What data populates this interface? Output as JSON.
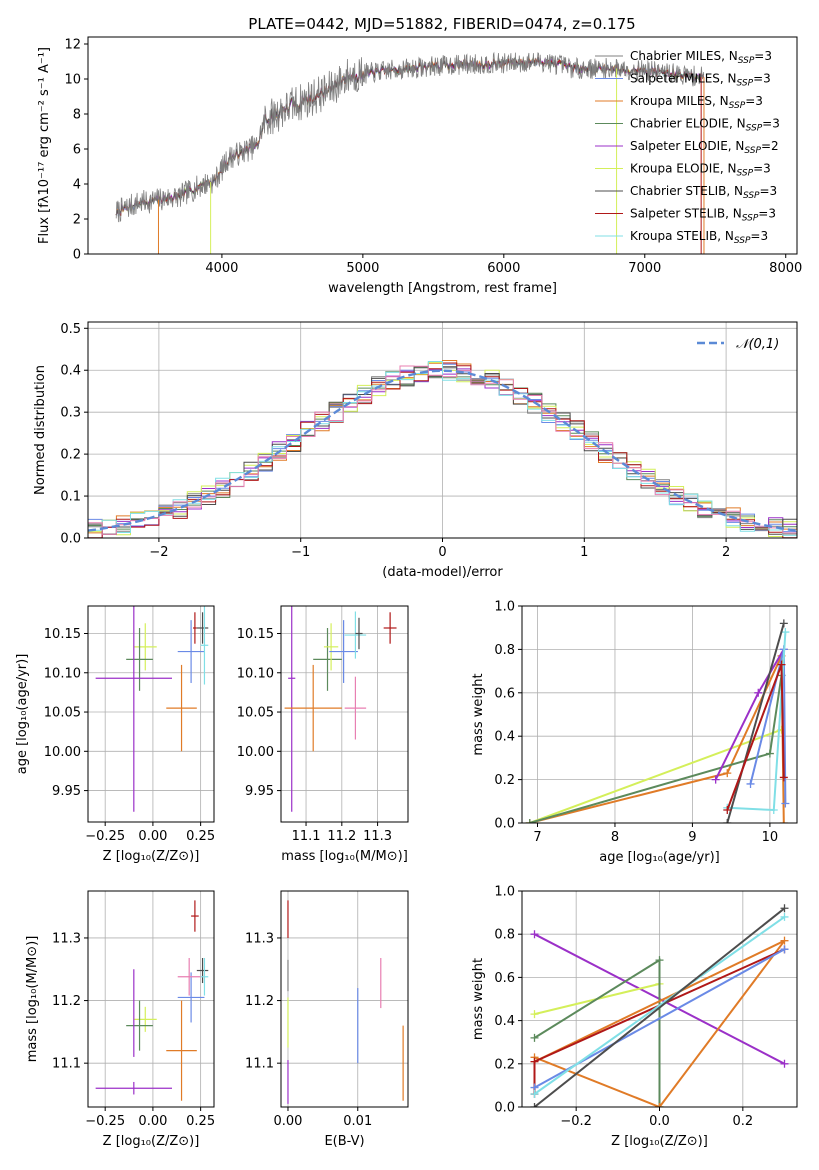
{
  "title": "PLATE=0442, MJD=51882, FIBERID=0474, z=0.175",
  "colors": {
    "Chabrier MILES": "#808080",
    "Salpeter MILES": "#6a8ae6",
    "Kroupa MILES": "#e07b27",
    "Chabrier ELODIE": "#5c8a5c",
    "Salpeter ELODIE": "#9b30c8",
    "Kroupa ELODIE": "#d4ef5a",
    "Chabrier STELIB": "#4d4d4d",
    "Salpeter STELIB": "#b01818",
    "Kroupa STELIB": "#80dfe6",
    "Extra pink": "#e87fb2",
    "Gaussian": "#5b8ad6"
  },
  "chart_data": [
    {
      "id": "spectrum",
      "type": "line",
      "xlabel": "wavelength [Angstrom, rest frame]",
      "ylabel": "Flux [fλ10⁻¹⁷ erg cm⁻² s⁻¹ A⁻¹]",
      "xlim": [
        3050,
        8080
      ],
      "ylim": [
        0,
        12.4
      ],
      "xticks": [
        4000,
        5000,
        6000,
        7000,
        8000
      ],
      "yticks": [
        0,
        2,
        4,
        6,
        8,
        10,
        12
      ],
      "grid": false,
      "legend_position": "top-right",
      "x_range_data": [
        3250,
        7420
      ],
      "continuum_knots": [
        [
          3250,
          2.4
        ],
        [
          3400,
          2.9
        ],
        [
          3550,
          3.1
        ],
        [
          3700,
          3.3
        ],
        [
          3850,
          3.9
        ],
        [
          3950,
          4.2
        ],
        [
          4050,
          5.5
        ],
        [
          4250,
          6.2
        ],
        [
          4300,
          7.6
        ],
        [
          4500,
          8.5
        ],
        [
          4750,
          9.3
        ],
        [
          4900,
          10.2
        ],
        [
          5200,
          10.5
        ],
        [
          5600,
          10.8
        ],
        [
          6000,
          10.9
        ],
        [
          6300,
          11.0
        ],
        [
          6500,
          10.6
        ],
        [
          6800,
          10.6
        ],
        [
          7000,
          10.5
        ],
        [
          7200,
          10.3
        ],
        [
          7420,
          10.1
        ]
      ],
      "series": [
        {
          "name": "Chabrier MILES, N",
          "sub": "SSP",
          "suffix": "=3",
          "color_key": "Chabrier MILES"
        },
        {
          "name": "Salpeter MILES, N",
          "sub": "SSP",
          "suffix": "=3",
          "color_key": "Salpeter MILES"
        },
        {
          "name": "Kroupa MILES, N",
          "sub": "SSP",
          "suffix": "=3",
          "color_key": "Kroupa MILES"
        },
        {
          "name": "Chabrier ELODIE, N",
          "sub": "SSP",
          "suffix": "=3",
          "color_key": "Chabrier ELODIE"
        },
        {
          "name": "Salpeter ELODIE, N",
          "sub": "SSP",
          "suffix": "=2",
          "color_key": "Salpeter ELODIE"
        },
        {
          "name": "Kroupa ELODIE, N",
          "sub": "SSP",
          "suffix": "=3",
          "color_key": "Kroupa ELODIE"
        },
        {
          "name": "Chabrier STELIB, N",
          "sub": "SSP",
          "suffix": "=3",
          "color_key": "Chabrier STELIB"
        },
        {
          "name": "Salpeter STELIB, N",
          "sub": "SSP",
          "suffix": "=3",
          "color_key": "Salpeter STELIB"
        },
        {
          "name": "Kroupa STELIB, N",
          "sub": "SSP",
          "suffix": "=3",
          "color_key": "Kroupa STELIB"
        }
      ],
      "vertical_drops": [
        {
          "x": 3550,
          "color_key": "Kroupa MILES"
        },
        {
          "x": 3920,
          "color_key": "Kroupa ELODIE"
        },
        {
          "x": 6800,
          "color_key": "Kroupa ELODIE"
        },
        {
          "x": 7400,
          "color_key": "Salpeter STELIB"
        },
        {
          "x": 7420,
          "color_key": "Kroupa MILES"
        }
      ]
    },
    {
      "id": "residuals",
      "type": "line",
      "xlabel": "(data-model)/error",
      "ylabel": "Normed distribution",
      "xlim": [
        -2.5,
        2.5
      ],
      "ylim": [
        0,
        0.515
      ],
      "xticks": [
        -2,
        -1,
        0,
        1,
        2
      ],
      "yticks": [
        0.0,
        0.1,
        0.2,
        0.3,
        0.4,
        0.5
      ],
      "grid": true,
      "legend_position": "top-right",
      "gaussian_label": "𝒩(0,1)",
      "bin_width": 0.1,
      "histogram_color_keys": [
        "Chabrier MILES",
        "Salpeter MILES",
        "Kroupa MILES",
        "Chabrier ELODIE",
        "Salpeter ELODIE",
        "Kroupa ELODIE",
        "Chabrier STELIB",
        "Salpeter STELIB",
        "Kroupa STELIB",
        "Extra pink"
      ]
    },
    {
      "id": "age_vs_Z",
      "type": "scatter",
      "xlabel": "Z [log₁₀(Z/Z⊙)]",
      "ylabel": "age  [log₁₀(age/yr)]",
      "xlim": [
        -0.34,
        0.32
      ],
      "ylim": [
        9.91,
        10.185
      ],
      "xticks": [
        -0.25,
        0.0,
        0.25
      ],
      "xticklabels": [
        "−0.25",
        "0.00",
        "0.25"
      ],
      "yticks": [
        9.95,
        10.0,
        10.05,
        10.1,
        10.15
      ],
      "yticklabels": [
        "9.95",
        "10.00",
        "10.05",
        "10.10",
        "10.15"
      ],
      "grid": true,
      "points": [
        {
          "color_key": "Kroupa ELODIE",
          "x": -0.04,
          "xerr": 0.06,
          "y": 10.133,
          "yerr": 0.03
        },
        {
          "color_key": "Chabrier ELODIE",
          "x": -0.07,
          "xerr": 0.07,
          "y": 10.117,
          "yerr": 0.04
        },
        {
          "color_key": "Salpeter ELODIE",
          "x": -0.1,
          "xerr": 0.2,
          "y": 10.093,
          "yerr": 0.17
        },
        {
          "color_key": "Salpeter MILES",
          "x": 0.2,
          "xerr": 0.07,
          "y": 10.127,
          "yerr": 0.04
        },
        {
          "color_key": "Salpeter STELIB",
          "x": 0.22,
          "xerr": 0.01,
          "y": 10.157,
          "yerr": 0.02
        },
        {
          "color_key": "Chabrier STELIB",
          "x": 0.26,
          "xerr": 0.03,
          "y": 10.157,
          "yerr": 0.02
        },
        {
          "color_key": "Kroupa STELIB",
          "x": 0.27,
          "xerr": 0.02,
          "y": 10.135,
          "yerr": 0.05
        },
        {
          "color_key": "Kroupa MILES",
          "x": 0.15,
          "xerr": 0.08,
          "y": 10.055,
          "yerr": 0.055
        }
      ]
    },
    {
      "id": "age_vs_mass",
      "type": "scatter",
      "xlabel": "mass [log₁₀(M/M⊙)]",
      "ylabel": "",
      "xlim": [
        11.03,
        11.385
      ],
      "ylim": [
        9.91,
        10.185
      ],
      "xticks": [
        11.1,
        11.2,
        11.3
      ],
      "xticklabels": [
        "11.1",
        "11.2",
        "11.3"
      ],
      "yticks": [
        9.95,
        10.0,
        10.05,
        10.1,
        10.15
      ],
      "yticklabels": [
        "9.95",
        "10.00",
        "10.05",
        "10.10",
        "10.15"
      ],
      "grid": true,
      "points": [
        {
          "color_key": "Salpeter ELODIE",
          "x": 11.06,
          "xerr": 0.01,
          "y": 10.093,
          "yerr": 0.17
        },
        {
          "color_key": "Kroupa MILES",
          "x": 11.12,
          "xerr": 0.08,
          "y": 10.055,
          "yerr": 0.055
        },
        {
          "color_key": "Chabrier ELODIE",
          "x": 11.16,
          "xerr": 0.04,
          "y": 10.117,
          "yerr": 0.04
        },
        {
          "color_key": "Kroupa ELODIE",
          "x": 11.17,
          "xerr": 0.02,
          "y": 10.133,
          "yerr": 0.03
        },
        {
          "color_key": "Salpeter MILES",
          "x": 11.205,
          "xerr": 0.04,
          "y": 10.127,
          "yerr": 0.04
        },
        {
          "color_key": "Extra pink",
          "x": 11.238,
          "xerr": 0.03,
          "y": 10.055,
          "yerr": 0.04
        },
        {
          "color_key": "Kroupa STELIB",
          "x": 11.238,
          "xerr": 0.03,
          "y": 10.148,
          "yerr": 0.03
        },
        {
          "color_key": "Chabrier STELIB",
          "x": 11.248,
          "xerr": 0.01,
          "y": 10.15,
          "yerr": 0.02
        },
        {
          "color_key": "Salpeter STELIB",
          "x": 11.335,
          "xerr": 0.018,
          "y": 10.157,
          "yerr": 0.02
        }
      ]
    },
    {
      "id": "weight_vs_age",
      "type": "line",
      "xlabel": "age  [log₁₀(age/yr)]",
      "ylabel": "mass weight",
      "xlim": [
        6.8,
        10.35
      ],
      "ylim": [
        0,
        1.0
      ],
      "xticks": [
        7,
        8,
        9,
        10
      ],
      "yticks": [
        0.0,
        0.2,
        0.4,
        0.6,
        0.8,
        1.0
      ],
      "grid": true,
      "series": [
        {
          "color_key": "Kroupa ELODIE",
          "x": [
            6.9,
            10.15
          ],
          "y": [
            0.0,
            0.43
          ]
        },
        {
          "color_key": "Kroupa MILES",
          "x": [
            6.9,
            9.45,
            10.15,
            10.18
          ],
          "y": [
            0.0,
            0.23,
            0.77,
            0.0
          ]
        },
        {
          "color_key": "Chabrier ELODIE",
          "x": [
            6.9,
            10.0,
            10.15
          ],
          "y": [
            0.0,
            0.32,
            0.68
          ]
        },
        {
          "color_key": "Salpeter ELODIE",
          "x": [
            9.3,
            9.85,
            10.18
          ],
          "y": [
            0.2,
            0.6,
            0.8
          ]
        },
        {
          "color_key": "Salpeter MILES",
          "x": [
            9.75,
            10.18,
            10.2
          ],
          "y": [
            0.18,
            0.8,
            0.09
          ]
        },
        {
          "color_key": "Kroupa STELIB",
          "x": [
            9.45,
            10.05,
            10.2
          ],
          "y": [
            0.07,
            0.06,
            0.88
          ]
        },
        {
          "color_key": "Chabrier STELIB",
          "x": [
            9.45,
            10.18
          ],
          "y": [
            0.0,
            0.92
          ]
        },
        {
          "color_key": "Salpeter STELIB",
          "x": [
            9.45,
            10.15,
            10.18
          ],
          "y": [
            0.06,
            0.73,
            0.21
          ]
        }
      ]
    },
    {
      "id": "mass_vs_Z",
      "type": "scatter",
      "xlabel": "Z [log₁₀(Z/Z⊙)]",
      "ylabel": "mass [log₁₀(M/M⊙)]",
      "xlim": [
        -0.34,
        0.32
      ],
      "ylim": [
        11.03,
        11.375
      ],
      "xticks": [
        -0.25,
        0.0,
        0.25
      ],
      "xticklabels": [
        "−0.25",
        "0.00",
        "0.25"
      ],
      "yticks": [
        11.1,
        11.2,
        11.3
      ],
      "yticklabels": [
        "11.1",
        "11.2",
        "11.3"
      ],
      "grid": true,
      "points": [
        {
          "color_key": "Salpeter ELODIE",
          "x": -0.1,
          "xerr": 0.2,
          "y": 11.06,
          "yerr": 0.01
        },
        {
          "color_key": "Kroupa ELODIE",
          "x": -0.04,
          "xerr": 0.06,
          "y": 11.17,
          "yerr": 0.02
        },
        {
          "color_key": "Chabrier ELODIE",
          "x": -0.07,
          "xerr": 0.07,
          "y": 11.16,
          "yerr": 0.04
        },
        {
          "color_key": "Salpeter ELODIE",
          "x": -0.1,
          "xerr": 0.0,
          "y": 11.18,
          "yerr": 0.07
        },
        {
          "color_key": "Salpeter MILES",
          "x": 0.2,
          "xerr": 0.07,
          "y": 11.205,
          "yerr": 0.04
        },
        {
          "color_key": "Kroupa MILES",
          "x": 0.15,
          "xerr": 0.08,
          "y": 11.12,
          "yerr": 0.08
        },
        {
          "color_key": "Extra pink",
          "x": 0.19,
          "xerr": 0.06,
          "y": 11.238,
          "yerr": 0.03
        },
        {
          "color_key": "Chabrier STELIB",
          "x": 0.26,
          "xerr": 0.03,
          "y": 11.248,
          "yerr": 0.02
        },
        {
          "color_key": "Salpeter STELIB",
          "x": 0.22,
          "xerr": 0.02,
          "y": 11.335,
          "yerr": 0.025
        },
        {
          "color_key": "Kroupa STELIB",
          "x": 0.27,
          "xerr": 0.02,
          "y": 11.238,
          "yerr": 0.03
        }
      ]
    },
    {
      "id": "mass_vs_ebv",
      "type": "scatter",
      "xlabel": "E(B-V)",
      "ylabel": "",
      "xlim": [
        -0.001,
        0.0172
      ],
      "ylim": [
        11.03,
        11.375
      ],
      "xticks": [
        0.0,
        0.01
      ],
      "xticklabels": [
        "0.00",
        "0.01"
      ],
      "yticks": [
        11.1,
        11.2,
        11.3
      ],
      "yticklabels": [
        "11.1",
        "11.2",
        "11.3"
      ],
      "grid": true,
      "points": [
        {
          "color_key": "Salpeter STELIB",
          "x": 0.0,
          "xerr": 0.0,
          "y": 11.33,
          "yerr": 0.03
        },
        {
          "color_key": "Chabrier MILES",
          "x": 0.0,
          "xerr": 0.0,
          "y": 11.24,
          "yerr": 0.025
        },
        {
          "color_key": "Kroupa ELODIE",
          "x": 0.0,
          "xerr": 0.0,
          "y": 11.165,
          "yerr": 0.04
        },
        {
          "color_key": "Salpeter ELODIE",
          "x": 0.0,
          "xerr": 0.0,
          "y": 11.07,
          "yerr": 0.035
        },
        {
          "color_key": "Salpeter MILES",
          "x": 0.01,
          "xerr": 0.0,
          "y": 11.16,
          "yerr": 0.06
        },
        {
          "color_key": "Extra pink",
          "x": 0.0133,
          "xerr": 0.0,
          "y": 11.228,
          "yerr": 0.04
        },
        {
          "color_key": "Kroupa MILES",
          "x": 0.0165,
          "xerr": 0.0,
          "y": 11.1,
          "yerr": 0.06
        }
      ]
    },
    {
      "id": "weight_vs_Z",
      "type": "line",
      "xlabel": "Z [log₁₀(Z/Z⊙)]",
      "ylabel": "mass weight",
      "xlim": [
        -0.33,
        0.33
      ],
      "ylim": [
        0,
        1.0
      ],
      "xticks": [
        -0.2,
        0.0,
        0.2
      ],
      "xticklabels": [
        "−0.2",
        "0.0",
        "0.2"
      ],
      "yticks": [
        0.0,
        0.2,
        0.4,
        0.6,
        0.8,
        1.0
      ],
      "grid": true,
      "series": [
        {
          "color_key": "Salpeter ELODIE",
          "x": [
            -0.3,
            0.3
          ],
          "y": [
            0.8,
            0.2
          ]
        },
        {
          "color_key": "Kroupa ELODIE",
          "x": [
            -0.3,
            0.0,
            0.0
          ],
          "y": [
            0.43,
            0.57,
            0.0
          ]
        },
        {
          "color_key": "Chabrier ELODIE",
          "x": [
            -0.3,
            0.0,
            0.0
          ],
          "y": [
            0.32,
            0.68,
            0.0
          ]
        },
        {
          "color_key": "Kroupa MILES",
          "x": [
            -0.3,
            0.0,
            0.3,
            -0.3
          ],
          "y": [
            0.23,
            0.0,
            0.77,
            0.21
          ]
        },
        {
          "color_key": "Salpeter STELIB",
          "x": [
            -0.3,
            -0.3,
            0.3
          ],
          "y": [
            0.06,
            0.21,
            0.73
          ]
        },
        {
          "color_key": "Salpeter MILES",
          "x": [
            -0.3,
            0.3
          ],
          "y": [
            0.09,
            0.73
          ]
        },
        {
          "color_key": "Kroupa STELIB",
          "x": [
            -0.3,
            0.3
          ],
          "y": [
            0.06,
            0.88
          ]
        },
        {
          "color_key": "Chabrier STELIB",
          "x": [
            -0.3,
            0.3
          ],
          "y": [
            0.0,
            0.92
          ]
        }
      ]
    }
  ]
}
